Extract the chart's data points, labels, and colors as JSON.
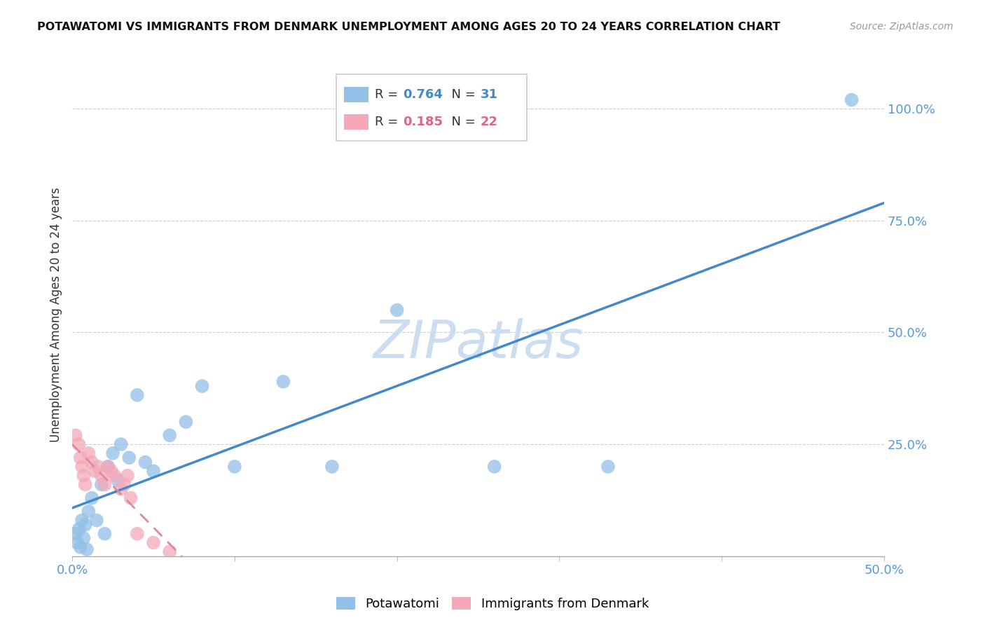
{
  "title": "POTAWATOMI VS IMMIGRANTS FROM DENMARK UNEMPLOYMENT AMONG AGES 20 TO 24 YEARS CORRELATION CHART",
  "source": "Source: ZipAtlas.com",
  "ylabel": "Unemployment Among Ages 20 to 24 years",
  "xlim": [
    0.0,
    0.5
  ],
  "ylim": [
    0.0,
    1.08
  ],
  "R_blue": 0.764,
  "N_blue": 31,
  "R_pink": 0.185,
  "N_pink": 22,
  "blue_color": "#92c0e8",
  "pink_color": "#f4a8b8",
  "blue_line_color": "#4488cc",
  "pink_line_color": "#e08898",
  "watermark": "ZIPatlas",
  "watermark_color": "#ccddf0",
  "blue_scatter_x": [
    0.002,
    0.003,
    0.004,
    0.005,
    0.006,
    0.007,
    0.008,
    0.009,
    0.01,
    0.012,
    0.015,
    0.018,
    0.02,
    0.022,
    0.025,
    0.028,
    0.03,
    0.035,
    0.04,
    0.045,
    0.05,
    0.06,
    0.07,
    0.08,
    0.1,
    0.13,
    0.16,
    0.2,
    0.26,
    0.33,
    0.48
  ],
  "blue_scatter_y": [
    0.05,
    0.03,
    0.06,
    0.02,
    0.08,
    0.04,
    0.07,
    0.015,
    0.1,
    0.13,
    0.08,
    0.16,
    0.05,
    0.2,
    0.23,
    0.17,
    0.25,
    0.22,
    0.36,
    0.21,
    0.19,
    0.27,
    0.3,
    0.38,
    0.2,
    0.39,
    0.2,
    0.55,
    0.2,
    0.2,
    1.02
  ],
  "pink_scatter_x": [
    0.002,
    0.004,
    0.005,
    0.006,
    0.007,
    0.008,
    0.01,
    0.012,
    0.014,
    0.016,
    0.018,
    0.02,
    0.022,
    0.024,
    0.026,
    0.03,
    0.032,
    0.034,
    0.036,
    0.04,
    0.05,
    0.06
  ],
  "pink_scatter_y": [
    0.27,
    0.25,
    0.22,
    0.2,
    0.18,
    0.16,
    0.23,
    0.21,
    0.19,
    0.2,
    0.18,
    0.16,
    0.2,
    0.19,
    0.18,
    0.15,
    0.16,
    0.18,
    0.13,
    0.05,
    0.03,
    0.01
  ],
  "y_ticks_right": [
    0.25,
    0.5,
    0.75,
    1.0
  ],
  "y_tick_labels_right": [
    "25.0%",
    "50.0%",
    "75.0%",
    "100.0%"
  ]
}
